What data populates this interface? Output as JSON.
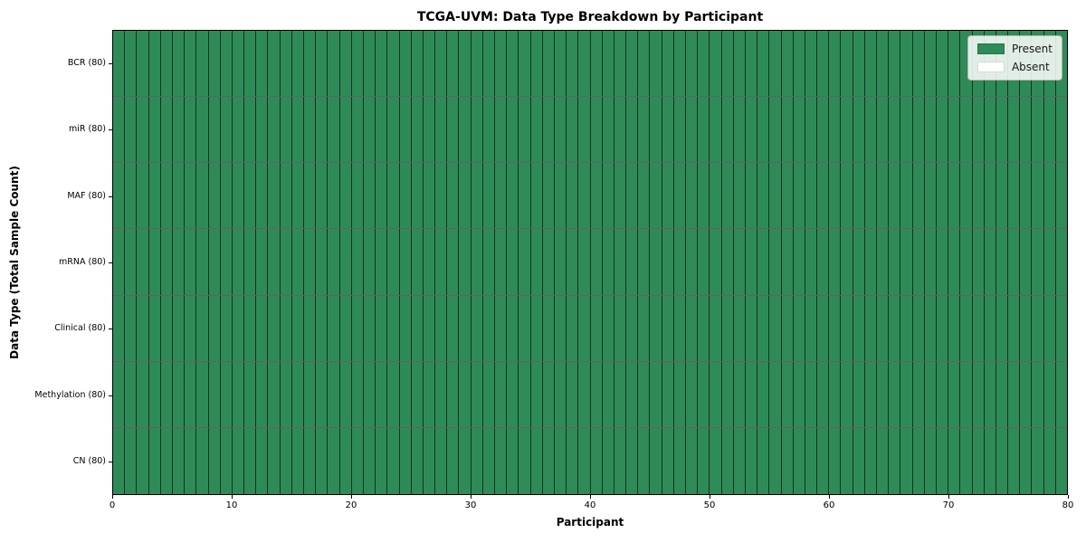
{
  "chart_data": {
    "type": "heatmap",
    "title": "TCGA-UVM: Data Type Breakdown by Participant",
    "xlabel": "Participant",
    "ylabel": "Data Type (Total Sample Count)",
    "x_range": [
      0,
      80
    ],
    "n_participants": 80,
    "x_ticks": [
      "0",
      "10",
      "20",
      "30",
      "40",
      "50",
      "60",
      "70",
      "80"
    ],
    "x_tick_values": [
      0,
      10,
      20,
      30,
      40,
      50,
      60,
      70,
      80
    ],
    "rows": [
      {
        "label": "BCR (80)",
        "present_count": 80
      },
      {
        "label": "miR (80)",
        "present_count": 80
      },
      {
        "label": "MAF (80)",
        "present_count": 80
      },
      {
        "label": "mRNA (80)",
        "present_count": 80
      },
      {
        "label": "Clinical (80)",
        "present_count": 80
      },
      {
        "label": "Methylation (80)",
        "present_count": 80
      },
      {
        "label": "CN (80)",
        "present_count": 80
      }
    ],
    "legend": [
      {
        "label": "Present",
        "color": "#2e8b57"
      },
      {
        "label": "Absent",
        "color": "#ffffff"
      }
    ],
    "grid_on": false,
    "legend_position": "upper right",
    "colors": {
      "present": "#2e8b57",
      "absent": "#ffffff",
      "gridline": "rgba(0,0,0,0.62)",
      "axis": "#000000"
    }
  }
}
